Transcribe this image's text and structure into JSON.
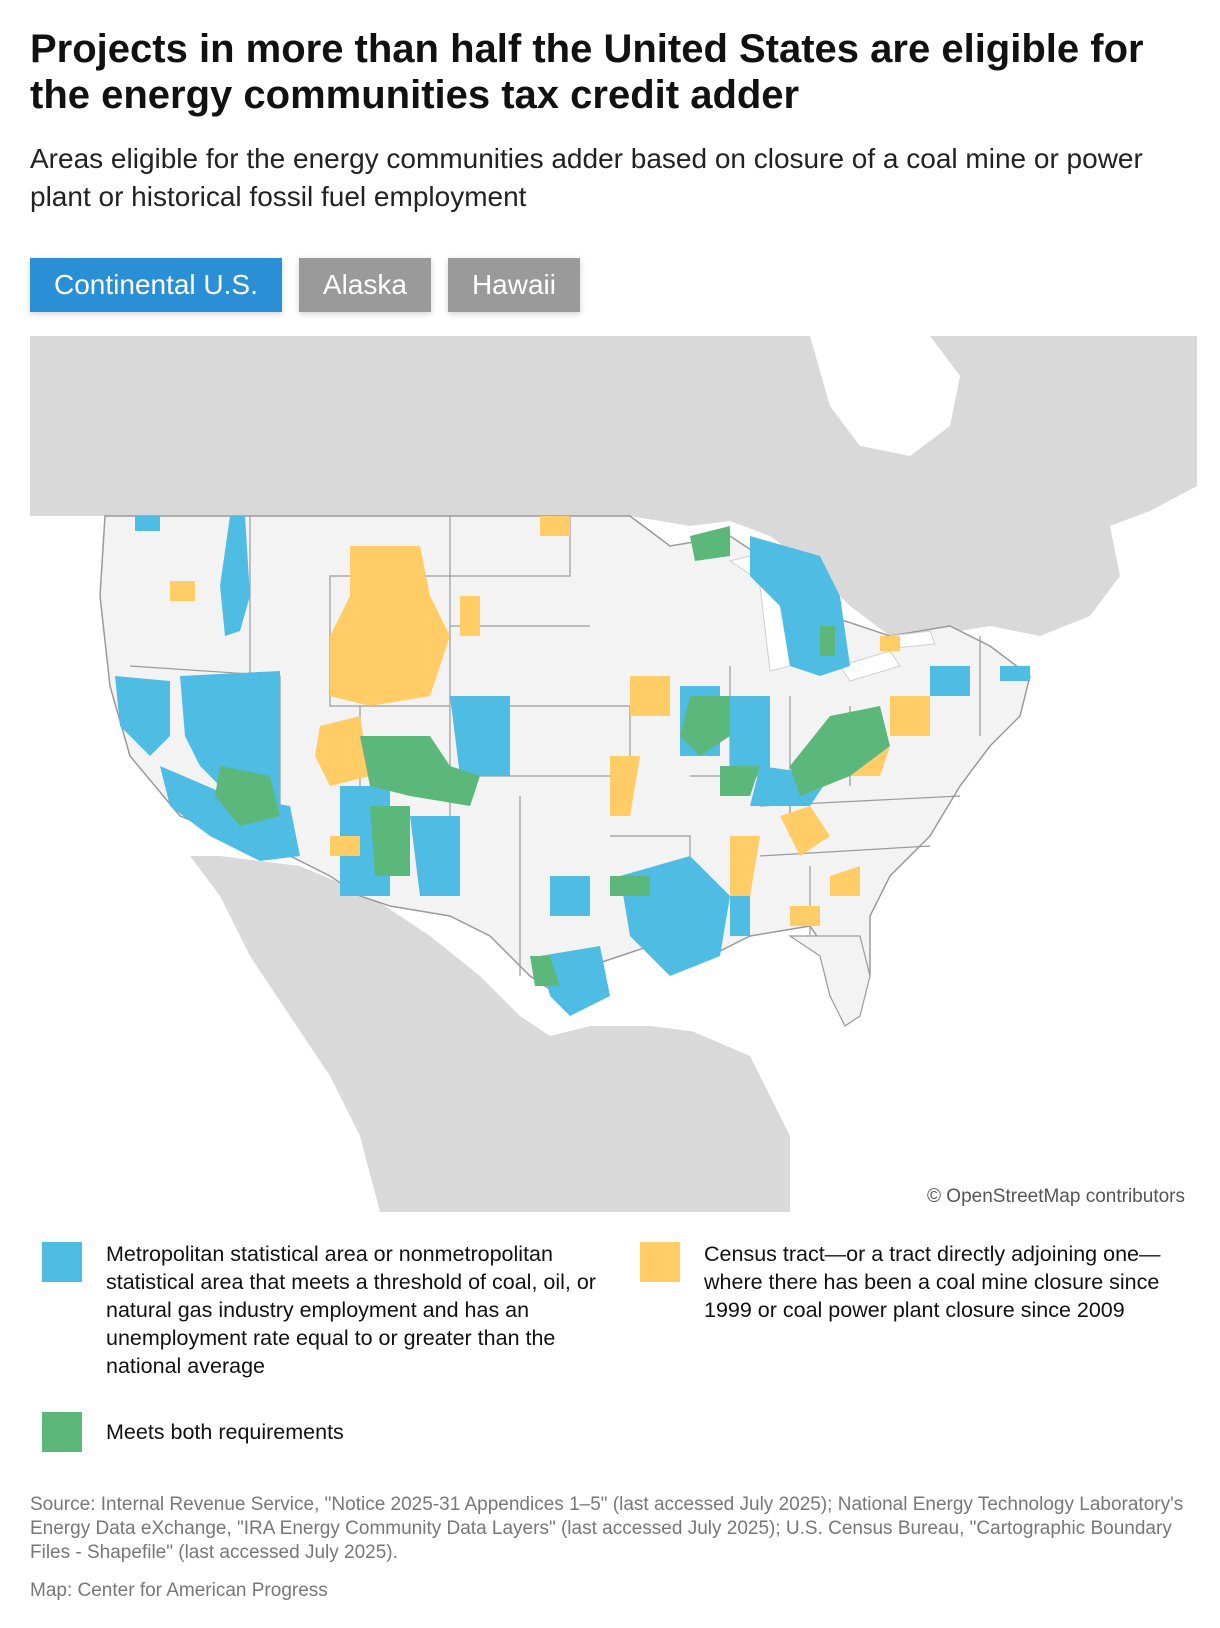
{
  "title": "Projects in more than half the United States are eligible for the energy communities tax credit adder",
  "subtitle": "Areas eligible for the energy communities adder based on closure of a coal mine or power plant or historical fossil fuel employment",
  "tabs": [
    {
      "label": "Continental U.S.",
      "active": true
    },
    {
      "label": "Alaska",
      "active": false
    },
    {
      "label": "Hawaii",
      "active": false
    }
  ],
  "map": {
    "attribution": "© OpenStreetMap contributors"
  },
  "colors": {
    "metro_area": "#4fbde3",
    "census_tract": "#ffcc66",
    "both": "#5cb87a",
    "land_us": "#f3f3f3",
    "land_other": "#d9d9d9",
    "water": "#ffffff",
    "tab_active": "#2b8fd6",
    "tab_inactive": "#9a9a9a"
  },
  "legend": [
    {
      "key": "metro_area",
      "text": "Metropolitan statistical area or nonmetropolitan statistical area that meets a threshold of coal, oil, or natural gas industry employment and has an unemployment rate equal to or greater than the national average"
    },
    {
      "key": "census_tract",
      "text": "Census tract—or a tract directly adjoining one—where there has been a coal mine closure since 1999 or coal power plant closure since 2009"
    },
    {
      "key": "both",
      "text": "Meets both requirements"
    }
  ],
  "source": "Source: Internal Revenue Service, \"Notice 2025-31 Appendices 1–5\" (last accessed July 2025); National Energy Technology Laboratory's Energy Data eXchange, \"IRA Energy Community Data Layers\" (last accessed July 2025); U.S. Census Bureau, \"Cartographic Boundary Files - Shapefile\" (last accessed July 2025).",
  "credit": "Map: Center for American Progress"
}
